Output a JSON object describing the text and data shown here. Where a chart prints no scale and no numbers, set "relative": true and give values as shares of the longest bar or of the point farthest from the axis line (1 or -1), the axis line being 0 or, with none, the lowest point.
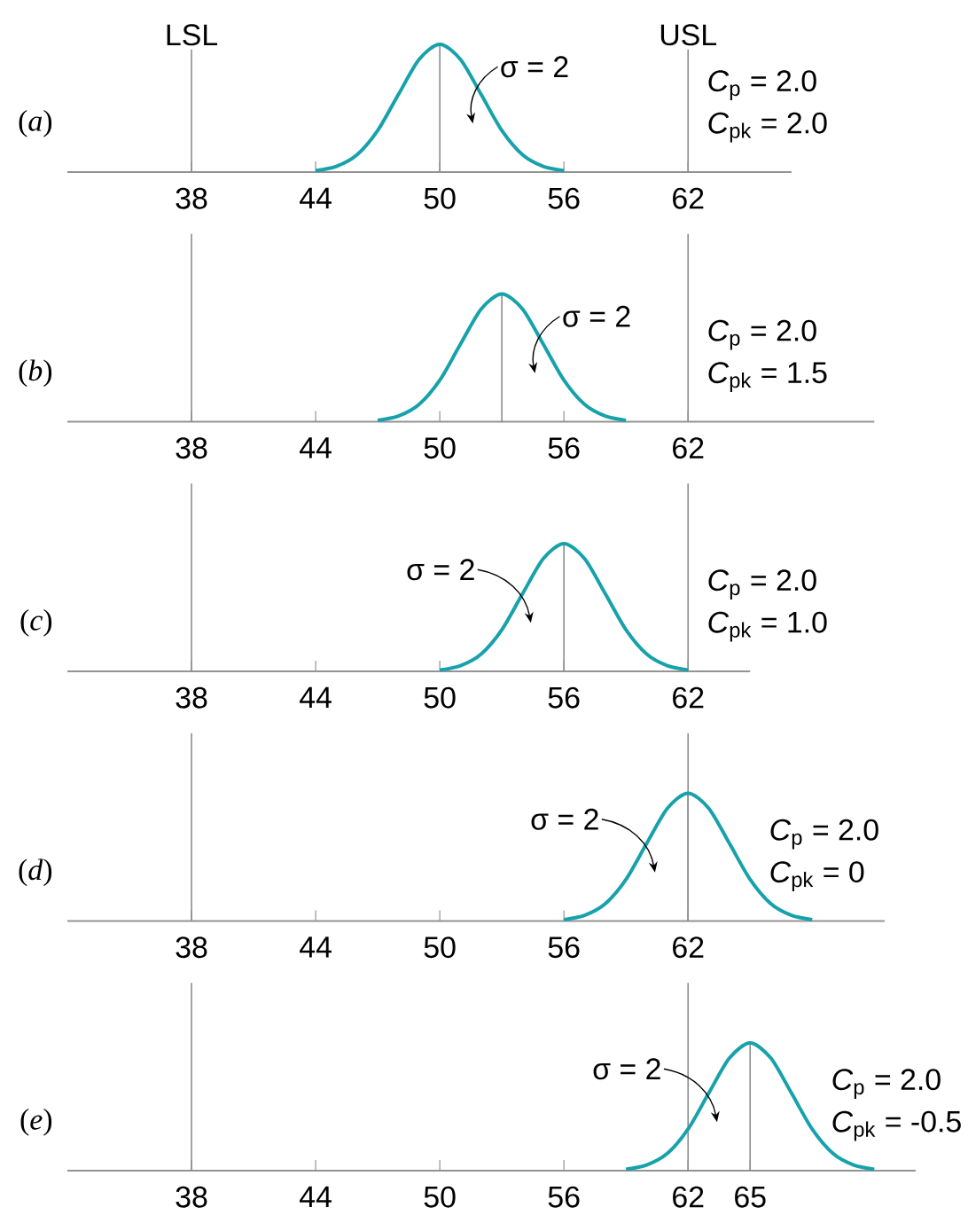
{
  "chart_data": [
    {
      "type": "line",
      "relative": true,
      "xlim": [
        32,
        67
      ],
      "xticks": [
        38,
        44,
        50,
        56,
        62
      ],
      "series": [
        {
          "color": "#8c8c8c",
          "x": [
            50,
            50
          ],
          "values": [
            0,
            1
          ]
        },
        {
          "color": "#17a2ab",
          "x": [
            44,
            45,
            46,
            47,
            48,
            49,
            50,
            51,
            52,
            53,
            54,
            55,
            56
          ],
          "values": [
            0.011,
            0.044,
            0.135,
            0.325,
            0.607,
            0.882,
            1,
            0.882,
            0.607,
            0.325,
            0.135,
            0.044,
            0.011
          ]
        }
      ],
      "ref_lines": [
        {
          "axis": "x",
          "value": 38,
          "label": "LSL",
          "color": "#8c8c8c"
        },
        {
          "axis": "x",
          "value": 62,
          "label": "USL",
          "color": "#8c8c8c"
        }
      ],
      "annotations": [
        "(*a*)",
        "*C*$_{p}$ = 2.0",
        "*C*$_{pk}$ = 2.0",
        "σ = 2"
      ]
    },
    {
      "type": "line",
      "relative": true,
      "xlim": [
        32,
        71
      ],
      "xticks": [
        38,
        44,
        50,
        56,
        62
      ],
      "series": [
        {
          "color": "#8c8c8c",
          "x": [
            53,
            53
          ],
          "values": [
            0,
            1
          ]
        },
        {
          "color": "#17a2ab",
          "x": [
            47,
            48,
            49,
            50,
            51,
            52,
            53,
            54,
            55,
            56,
            57,
            58,
            59
          ],
          "values": [
            0.011,
            0.044,
            0.135,
            0.325,
            0.607,
            0.882,
            1,
            0.882,
            0.607,
            0.325,
            0.135,
            0.044,
            0.011
          ]
        }
      ],
      "ref_lines": [
        {
          "axis": "x",
          "value": 38,
          "color": "#8c8c8c"
        },
        {
          "axis": "x",
          "value": 62,
          "color": "#8c8c8c"
        }
      ],
      "annotations": [
        "(*b*)",
        "*C*$_{p}$ = 2.0",
        "*C*$_{pk}$ = 1.5",
        "σ = 2"
      ]
    },
    {
      "type": "line",
      "relative": true,
      "xlim": [
        32,
        65
      ],
      "xticks": [
        38,
        44,
        50,
        56,
        62
      ],
      "series": [
        {
          "color": "#8c8c8c",
          "x": [
            56,
            56
          ],
          "values": [
            0,
            1
          ]
        },
        {
          "color": "#17a2ab",
          "x": [
            50,
            51,
            52,
            53,
            54,
            55,
            56,
            57,
            58,
            59,
            60,
            61,
            62
          ],
          "values": [
            0.011,
            0.044,
            0.135,
            0.325,
            0.607,
            0.882,
            1,
            0.882,
            0.607,
            0.325,
            0.135,
            0.044,
            0.011
          ]
        }
      ],
      "ref_lines": [
        {
          "axis": "x",
          "value": 38,
          "color": "#8c8c8c"
        },
        {
          "axis": "x",
          "value": 62,
          "color": "#8c8c8c"
        }
      ],
      "annotations": [
        "(*c*)",
        "*C*$_{p}$ = 2.0",
        "*C*$_{pk}$ = 1.0",
        "σ = 2"
      ]
    },
    {
      "type": "line",
      "relative": true,
      "xlim": [
        32,
        71.5
      ],
      "xticks": [
        38,
        44,
        50,
        56,
        62
      ],
      "series": [
        {
          "color": "#8c8c8c",
          "x": [
            62,
            62
          ],
          "values": [
            0,
            1
          ]
        },
        {
          "color": "#17a2ab",
          "x": [
            56,
            57,
            58,
            59,
            60,
            61,
            62,
            63,
            64,
            65,
            66,
            67,
            68
          ],
          "values": [
            0.011,
            0.044,
            0.135,
            0.325,
            0.607,
            0.882,
            1,
            0.882,
            0.607,
            0.325,
            0.135,
            0.044,
            0.011
          ]
        }
      ],
      "ref_lines": [
        {
          "axis": "x",
          "value": 38,
          "color": "#8c8c8c"
        },
        {
          "axis": "x",
          "value": 62,
          "color": "#8c8c8c"
        }
      ],
      "annotations": [
        "(*d*)",
        "*C*$_{p}$ = 2.0",
        "*C*$_{pk}$ = 0",
        "σ = 2"
      ]
    },
    {
      "type": "line",
      "relative": true,
      "xlim": [
        32,
        73
      ],
      "xticks": [
        38,
        44,
        50,
        56,
        62,
        65
      ],
      "series": [
        {
          "color": "#8c8c8c",
          "x": [
            65,
            65
          ],
          "values": [
            0,
            1
          ]
        },
        {
          "color": "#17a2ab",
          "x": [
            59,
            60,
            61,
            62,
            63,
            64,
            65,
            66,
            67,
            68,
            69,
            70,
            71
          ],
          "values": [
            0.011,
            0.044,
            0.135,
            0.325,
            0.607,
            0.882,
            1,
            0.882,
            0.607,
            0.325,
            0.135,
            0.044,
            0.011
          ]
        }
      ],
      "ref_lines": [
        {
          "axis": "x",
          "value": 38,
          "color": "#8c8c8c"
        },
        {
          "axis": "x",
          "value": 62,
          "color": "#8c8c8c"
        }
      ],
      "annotations": [
        "(*e*)",
        "*C*$_{p}$ = 2.0",
        "*C*$_{pk}$ = -0.5",
        "σ = 2"
      ]
    }
  ]
}
